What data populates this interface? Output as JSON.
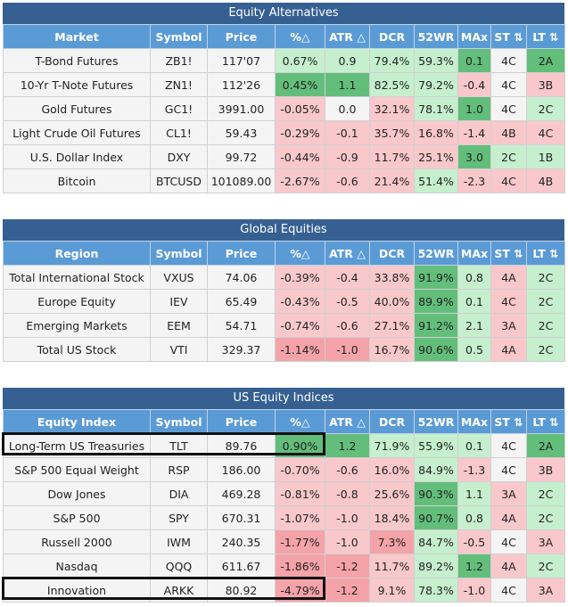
{
  "sections": [
    {
      "title": "Equity Alternatives",
      "headers": [
        "Market",
        "Symbol",
        "Price",
        "%△",
        "ATR △",
        "DCR",
        "52WR",
        "MAx",
        "ST ⇅",
        "LT ⇅"
      ],
      "rows": [
        [
          "T-Bond Futures",
          "ZB1!",
          "117'07",
          "0.67%",
          "0.9",
          "79.4%",
          "59.3%",
          "0.1",
          "4C",
          "2A"
        ],
        [
          "10-Yr T-Note Futures",
          "ZN1!",
          "112'26",
          "0.45%",
          "1.1",
          "82.5%",
          "79.2%",
          "-0.4",
          "4C",
          "3B"
        ],
        [
          "Gold Futures",
          "GC1!",
          "3991.00",
          "-0.05%",
          "0.0",
          "32.1%",
          "78.1%",
          "1.0",
          "4C",
          "2C"
        ],
        [
          "Light Crude Oil Futures",
          "CL1!",
          "59.43",
          "-0.29%",
          "-0.1",
          "35.7%",
          "16.8%",
          "-1.4",
          "4B",
          "4C"
        ],
        [
          "U.S. Dollar Index",
          "DXY",
          "99.72",
          "-0.44%",
          "-0.9",
          "11.7%",
          "25.1%",
          "3.0",
          "2C",
          "1B"
        ],
        [
          "Bitcoin",
          "BTCUSD",
          "101089.00",
          "-2.67%",
          "-0.6",
          "21.4%",
          "51.4%",
          "-2.3",
          "4C",
          "4B"
        ]
      ]
    },
    {
      "title": "Global Equities",
      "headers": [
        "Region",
        "Symbol",
        "Price",
        "%△",
        "ATR △",
        "DCR",
        "52WR",
        "MAx",
        "ST ⇅",
        "LT ⇅"
      ],
      "rows": [
        [
          "Total International Stock",
          "VXUS",
          "74.06",
          "-0.39%",
          "-0.4",
          "33.8%",
          "91.9%",
          "0.8",
          "4A",
          "2C"
        ],
        [
          "Europe Equity",
          "IEV",
          "65.49",
          "-0.43%",
          "-0.5",
          "40.0%",
          "89.9%",
          "0.1",
          "4C",
          "2C"
        ],
        [
          "Emerging Markets",
          "EEM",
          "54.71",
          "-0.74%",
          "-0.6",
          "27.1%",
          "91.2%",
          "2.1",
          "3A",
          "2C"
        ],
        [
          "Total US Stock",
          "VTI",
          "329.37",
          "-1.14%",
          "-1.0",
          "16.7%",
          "90.6%",
          "0.5",
          "4A",
          "2C"
        ]
      ]
    },
    {
      "title": "US Equity Indices",
      "headers": [
        "Equity Index",
        "Symbol",
        "Price",
        "%△",
        "ATR △",
        "DCR",
        "52WR",
        "MAx",
        "ST ⇅",
        "LT ⇅"
      ],
      "rows": [
        [
          "Long-Term US Treasuries",
          "TLT",
          "89.76",
          "0.90%",
          "1.2",
          "71.9%",
          "55.9%",
          "0.1",
          "4C",
          "2A"
        ],
        [
          "S&P 500 Equal Weight",
          "RSP",
          "186.00",
          "-0.70%",
          "-0.6",
          "16.0%",
          "84.9%",
          "-1.3",
          "4C",
          "3B"
        ],
        [
          "Dow Jones",
          "DIA",
          "469.28",
          "-0.81%",
          "-0.8",
          "25.6%",
          "90.3%",
          "1.1",
          "3A",
          "2C"
        ],
        [
          "S&P 500",
          "SPY",
          "670.31",
          "-1.07%",
          "-1.0",
          "18.4%",
          "90.7%",
          "0.8",
          "4A",
          "2C"
        ],
        [
          "Russell 2000",
          "IWM",
          "240.35",
          "-1.77%",
          "-1.0",
          "7.3%",
          "84.7%",
          "-0.5",
          "4C",
          "3A"
        ],
        [
          "Nasdaq",
          "QQQ",
          "611.67",
          "-1.86%",
          "-1.2",
          "11.7%",
          "89.2%",
          "1.2",
          "4A",
          "2C"
        ],
        [
          "Innovation",
          "ARKK",
          "80.92",
          "-4.79%",
          "-1.2",
          "9.1%",
          "78.3%",
          "-1.0",
          "4C",
          "3A"
        ]
      ]
    }
  ],
  "cell_shading": [
    [
      [
        "n",
        "n",
        "n",
        "g",
        "g",
        "g",
        "g",
        "dg",
        "n",
        "dg"
      ],
      [
        "n",
        "n",
        "n",
        "dg",
        "dg",
        "g",
        "g",
        "r",
        "n",
        "r"
      ],
      [
        "n",
        "n",
        "n",
        "r",
        "n",
        "r",
        "g",
        "dg",
        "n",
        "g"
      ],
      [
        "n",
        "n",
        "n",
        "r",
        "r",
        "r",
        "r",
        "r",
        "r",
        "r"
      ],
      [
        "n",
        "n",
        "n",
        "r",
        "r",
        "r",
        "r",
        "dg",
        "g",
        "g"
      ],
      [
        "n",
        "n",
        "n",
        "r",
        "r",
        "r",
        "g",
        "r",
        "r",
        "r"
      ]
    ],
    [
      [
        "n",
        "n",
        "n",
        "r",
        "r",
        "r",
        "dg",
        "g",
        "r",
        "g"
      ],
      [
        "n",
        "n",
        "n",
        "r",
        "r",
        "r",
        "dg",
        "g",
        "r",
        "g"
      ],
      [
        "n",
        "n",
        "n",
        "r",
        "r",
        "r",
        "dg",
        "g",
        "r",
        "g"
      ],
      [
        "n",
        "n",
        "n",
        "dr",
        "dr",
        "r",
        "dg",
        "g",
        "r",
        "g"
      ]
    ],
    [
      [
        "n",
        "n",
        "n",
        "dg",
        "dg",
        "g",
        "g",
        "g",
        "n",
        "dg"
      ],
      [
        "n",
        "n",
        "n",
        "r",
        "r",
        "r",
        "g",
        "r",
        "n",
        "r"
      ],
      [
        "n",
        "n",
        "n",
        "r",
        "r",
        "r",
        "dg",
        "g",
        "r",
        "g"
      ],
      [
        "n",
        "n",
        "n",
        "r",
        "r",
        "r",
        "dg",
        "g",
        "r",
        "g"
      ],
      [
        "n",
        "n",
        "n",
        "dr",
        "r",
        "dr",
        "g",
        "r",
        "n",
        "r"
      ],
      [
        "n",
        "n",
        "n",
        "dr",
        "dr",
        "r",
        "g",
        "dg",
        "r",
        "g"
      ],
      [
        "n",
        "n",
        "n",
        "dr",
        "dr",
        "r",
        "g",
        "r",
        "n",
        "r"
      ]
    ]
  ],
  "highlighted_rows": [
    {
      "section": 2,
      "row": 0
    },
    {
      "section": 2,
      "row": 6
    }
  ]
}
